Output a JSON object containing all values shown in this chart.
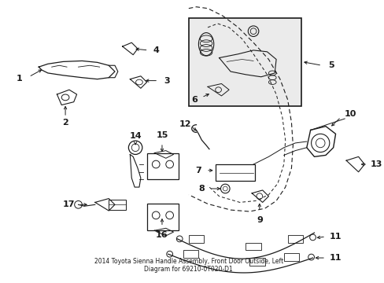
{
  "title": "2014 Toyota Sienna Handle Assembly, Front Door Outside, Left\nDiagram for 69210-0T020-D1",
  "background_color": "#ffffff",
  "line_color": "#1a1a1a",
  "figsize": [
    4.89,
    3.6
  ],
  "dpi": 100
}
